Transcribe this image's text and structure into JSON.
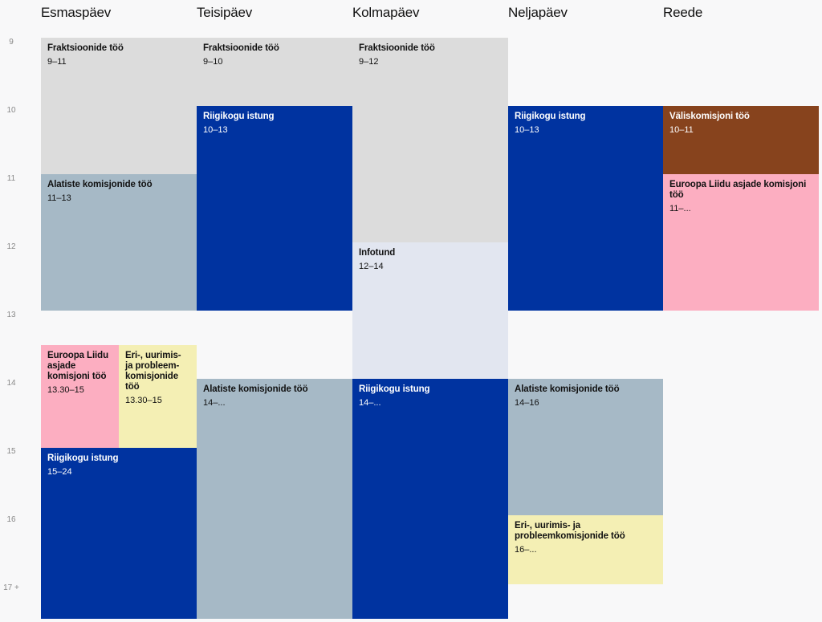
{
  "days": [
    "Esmaspäev",
    "Teisipäev",
    "Kolmapäev",
    "Neljapäev",
    "Reede"
  ],
  "hours": [
    "9",
    "10",
    "11",
    "12",
    "13",
    "14",
    "15",
    "16",
    "17 +"
  ],
  "events": {
    "mon_fraktsioonid": {
      "title": "Fraktsioonide töö",
      "time": "9–11"
    },
    "mon_alatiste": {
      "title": "Alatiste komisjonide töö",
      "time": "11–13"
    },
    "mon_euroopa": {
      "title": "Euroopa Liidu asjade komisjoni töö",
      "time": "13.30–15"
    },
    "mon_eri": {
      "title": "Eri-, uurimis- ja probleem-komisjonide töö",
      "time": "13.30–15"
    },
    "mon_riigikogu": {
      "title": "Riigikogu istung",
      "time": "15–24"
    },
    "tue_fraktsioonid": {
      "title": "Fraktsioonide töö",
      "time": "9–10"
    },
    "tue_riigikogu": {
      "title": "Riigikogu istung",
      "time": "10–13"
    },
    "tue_alatiste": {
      "title": "Alatiste komisjonide töö",
      "time": "14–..."
    },
    "wed_fraktsioonid": {
      "title": "Fraktsioonide töö",
      "time": "9–12"
    },
    "wed_infotund": {
      "title": "Infotund",
      "time": "12–14"
    },
    "wed_riigikogu": {
      "title": "Riigikogu istung",
      "time": "14–..."
    },
    "thu_riigikogu": {
      "title": "Riigikogu istung",
      "time": "10–13"
    },
    "thu_alatiste": {
      "title": "Alatiste komisjonide töö",
      "time": "14–16"
    },
    "thu_eri": {
      "title": "Eri-, uurimis- ja probleemkomisjonide töö",
      "time": "16–..."
    },
    "fri_valiskomisjon": {
      "title": "Väliskomisjoni töö",
      "time": "10–11"
    },
    "fri_euroopa": {
      "title": "Euroopa Liidu asjade komisjoni töö",
      "time": "11–..."
    }
  },
  "colors": {
    "fraktsioonid": "#dcdcdc",
    "riigikogu": "#0033a0",
    "alatiste": "#a6b9c6",
    "euroopa": "#fcaec1",
    "eri": "#f4efb4",
    "infotund": "#e2e6f0",
    "valiskomisjon": "#87431d"
  }
}
